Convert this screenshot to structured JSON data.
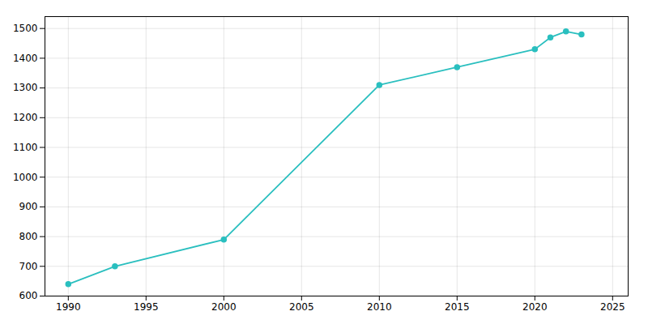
{
  "chart_data": {
    "type": "line",
    "x": [
      1990,
      1993,
      2000,
      2010,
      2015,
      2020,
      2021,
      2022,
      2023
    ],
    "values": [
      640,
      700,
      790,
      1310,
      1370,
      1430,
      1470,
      1490,
      1480
    ],
    "color": "#2abfbf",
    "marker": "circle",
    "xlim": [
      1988.5,
      2026
    ],
    "xticks": [
      1990,
      1995,
      2000,
      2005,
      2010,
      2015,
      2020,
      2025
    ],
    "ylim": [
      600,
      1540
    ],
    "yticks": [
      600,
      700,
      800,
      900,
      1000,
      1100,
      1200,
      1300,
      1400,
      1500
    ],
    "grid": true
  }
}
